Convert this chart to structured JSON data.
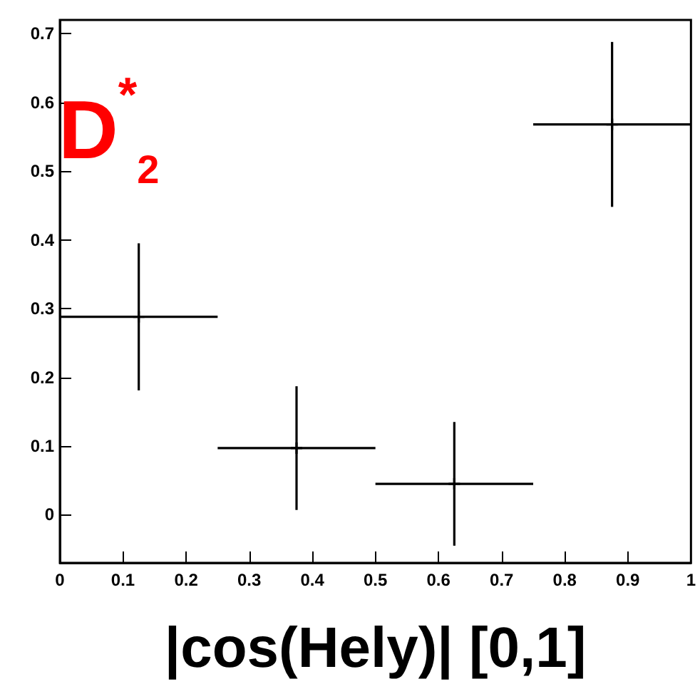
{
  "chart_data": {
    "type": "scatter",
    "title": "D$^{*}$$_{2}$",
    "xlabel": "|cos(Hely)| [0,1]",
    "x": [
      0.125,
      0.375,
      0.625,
      0.875
    ],
    "series": [
      {
        "color": "#000000",
        "values": [
          0.288,
          0.097,
          0.045,
          0.568
        ],
        "errors": [
          0.107,
          0.09,
          0.09,
          0.12
        ],
        "xerrors": [
          0.125,
          0.125,
          0.125,
          0.125
        ]
      }
    ],
    "marker": "cross",
    "grid": false,
    "xlim": [
      0,
      1
    ],
    "xticks": [
      0,
      0.1,
      0.2,
      0.3,
      0.4,
      0.5,
      0.6,
      0.7,
      0.8,
      0.9,
      1
    ],
    "ylim": [
      -0.07,
      0.72
    ],
    "yticks": [
      0,
      0.1,
      0.2,
      0.3,
      0.4,
      0.5,
      0.6,
      0.7
    ]
  }
}
